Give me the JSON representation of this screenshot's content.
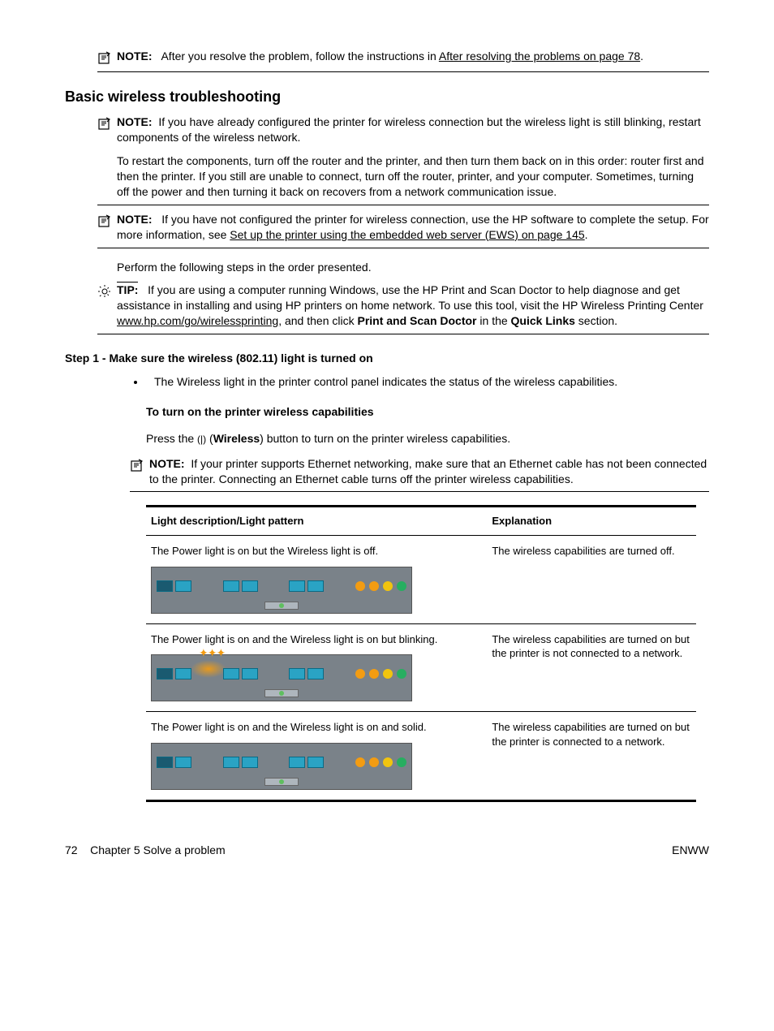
{
  "note1": {
    "label": "NOTE:",
    "before": "After you resolve the problem, follow the instructions in ",
    "link": "After resolving the problems on page 78",
    "after": "."
  },
  "heading": "Basic wireless troubleshooting",
  "note2": {
    "label": "NOTE:",
    "p1": "If you have already configured the printer for wireless connection but the wireless light is still blinking, restart components of the wireless network.",
    "p2": "To restart the components, turn off the router and the printer, and then turn them back on in this order: router first and then the printer. If you still are unable to connect, turn off the router, printer, and your computer. Sometimes, turning off the power and then turning it back on recovers from a network communication issue."
  },
  "note3": {
    "label": "NOTE:",
    "before": "If you have not configured the printer for wireless connection, use the HP software to complete the setup. For more information, see ",
    "link": "Set up the printer using the embedded web server (EWS) on page 145",
    "after": "."
  },
  "perform": "Perform the following steps in the order presented.",
  "tip": {
    "label": "TIP:",
    "t1": "If you are using a computer running Windows, use the HP Print and Scan Doctor to help diagnose and get assistance in installing and using HP printers on home network. To use this tool, visit the HP Wireless Printing Center ",
    "link": "www.hp.com/go/wirelessprinting",
    "t2": ", and then click ",
    "b1": "Print and Scan Doctor",
    "t3": " in the ",
    "b2": "Quick Links",
    "t4": " section."
  },
  "step1": "Step 1 - Make sure the wireless (802.11) light is turned on",
  "bullet1": "The Wireless light in the printer control panel indicates the status of the wireless capabilities.",
  "subhead": "To turn on the printer wireless capabilities",
  "press": {
    "t1": "Press the ",
    "t2": " (",
    "b": "Wireless",
    "t3": ") button to turn on the printer wireless capabilities."
  },
  "note4": {
    "label": "NOTE:",
    "text": "If your printer supports Ethernet networking, make sure that an Ethernet cable has not been connected to the printer. Connecting an Ethernet cable turns off the printer wireless capabilities."
  },
  "table": {
    "h1": "Light description/Light pattern",
    "h2": "Explanation",
    "rows": [
      {
        "desc": "The Power light is on but the Wireless light is off.",
        "exp": "The wireless capabilities are turned off.",
        "blink": false
      },
      {
        "desc": "The Power light is on and the Wireless light is on but blinking.",
        "exp": "The wireless capabilities are turned on but the printer is not connected to a network.",
        "blink": true
      },
      {
        "desc": "The Power light is on and the Wireless light is on and solid.",
        "exp": "The wireless capabilities are turned on but the printer is connected to a network.",
        "blink": false
      }
    ]
  },
  "footer": {
    "page": "72",
    "chapter": "Chapter 5   Solve a problem",
    "right": "ENWW"
  }
}
